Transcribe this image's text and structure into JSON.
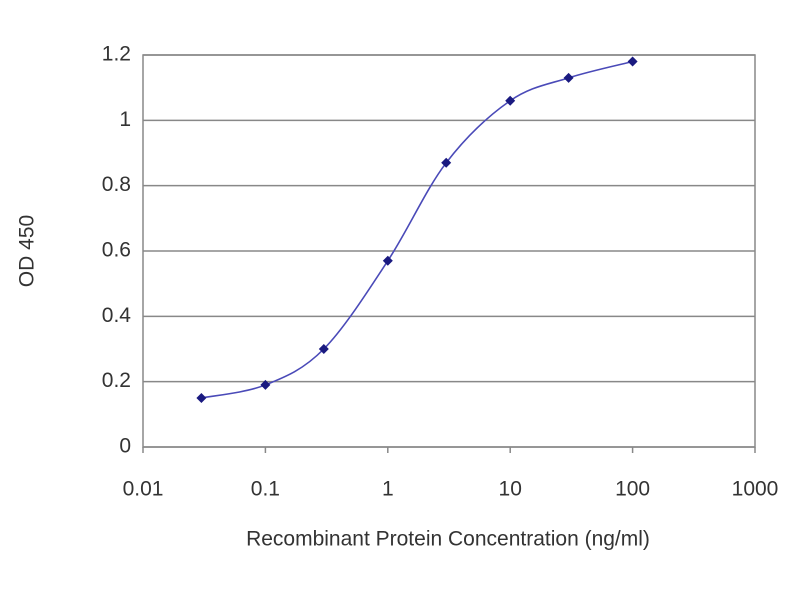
{
  "chart_data": {
    "type": "line",
    "x_label": "Recombinant Protein Concentration (ng/ml)",
    "y_label": "OD 450",
    "x": [
      0.03,
      0.1,
      0.3,
      1,
      3,
      10,
      30,
      100
    ],
    "series": [
      {
        "name": "OD 450",
        "color": "#1a1a80",
        "line_color": "#4a4ab8",
        "values": [
          0.15,
          0.19,
          0.3,
          0.57,
          0.87,
          1.06,
          1.13,
          1.18
        ]
      }
    ],
    "xscale": "log",
    "xlim": [
      0.01,
      1000
    ],
    "xticks": [
      0.01,
      0.1,
      1,
      10,
      100,
      1000
    ],
    "ylim": [
      0,
      1.2
    ],
    "yticks": [
      0,
      0.2,
      0.4,
      0.6,
      0.8,
      1,
      1.2
    ],
    "grid": true
  }
}
